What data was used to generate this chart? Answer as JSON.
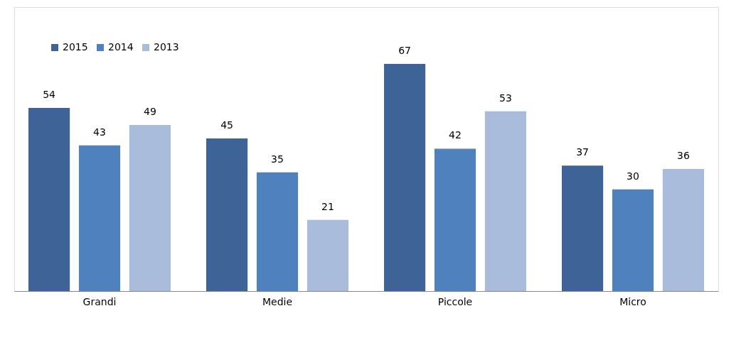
{
  "chart_data": {
    "type": "bar",
    "categories": [
      "Grandi",
      "Medie",
      "Piccole",
      "Micro"
    ],
    "series": [
      {
        "name": "2015",
        "color": "#3e6497",
        "values": [
          54,
          45,
          67,
          37
        ]
      },
      {
        "name": "2014",
        "color": "#4f81bd",
        "values": [
          43,
          35,
          42,
          30
        ]
      },
      {
        "name": "2013",
        "color": "#a8bbda",
        "values": [
          49,
          21,
          53,
          36
        ]
      }
    ],
    "data_labels": true,
    "legend": "top left",
    "grid": false
  }
}
